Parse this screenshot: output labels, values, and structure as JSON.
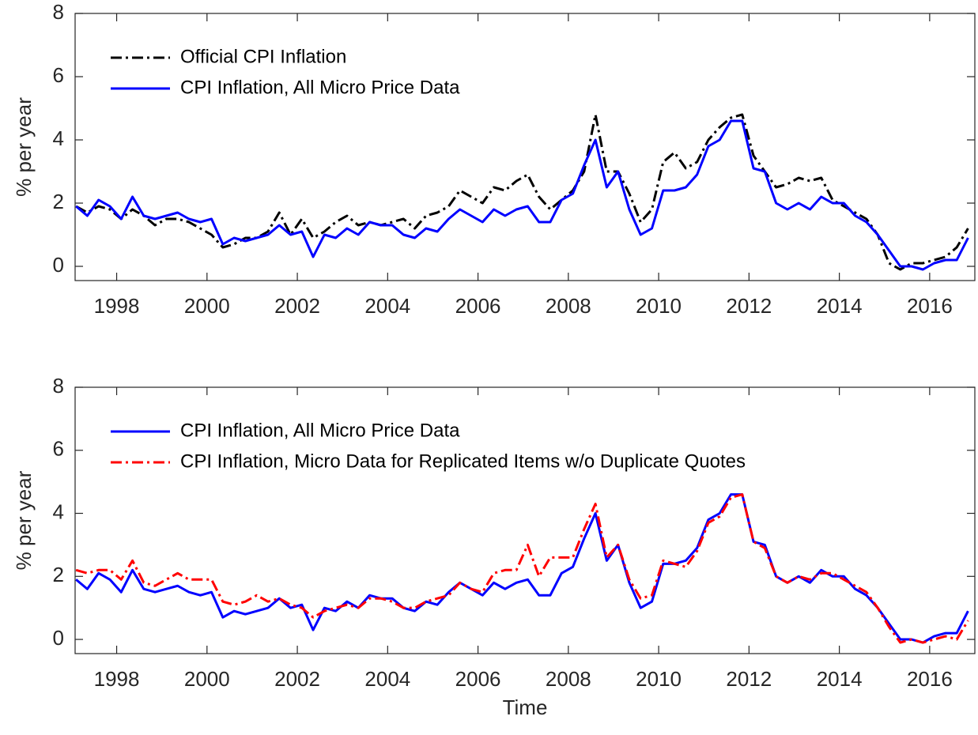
{
  "chart_data": [
    {
      "type": "line",
      "ylabel": "% per year",
      "legend": "upper left",
      "grid": false,
      "xlim": [
        1997.08,
        2017.0
      ],
      "ylim": [
        -0.45,
        8
      ],
      "xticks": [
        1998,
        2000,
        2002,
        2004,
        2006,
        2008,
        2010,
        2012,
        2014,
        2016
      ],
      "yticks": [
        0,
        2,
        4,
        6,
        8
      ],
      "x": [
        1997.1,
        1997.35,
        1997.6,
        1997.85,
        1998.1,
        1998.35,
        1998.6,
        1998.85,
        1999.1,
        1999.35,
        1999.6,
        1999.85,
        2000.1,
        2000.35,
        2000.6,
        2000.85,
        2001.1,
        2001.35,
        2001.6,
        2001.85,
        2002.1,
        2002.35,
        2002.6,
        2002.85,
        2003.1,
        2003.35,
        2003.6,
        2003.85,
        2004.1,
        2004.35,
        2004.6,
        2004.85,
        2005.1,
        2005.35,
        2005.6,
        2005.85,
        2006.1,
        2006.35,
        2006.6,
        2006.85,
        2007.1,
        2007.35,
        2007.6,
        2007.85,
        2008.1,
        2008.35,
        2008.6,
        2008.85,
        2009.1,
        2009.35,
        2009.6,
        2009.85,
        2010.1,
        2010.35,
        2010.6,
        2010.85,
        2011.1,
        2011.35,
        2011.6,
        2011.85,
        2012.1,
        2012.35,
        2012.6,
        2012.85,
        2013.1,
        2013.35,
        2013.6,
        2013.85,
        2014.1,
        2014.35,
        2014.6,
        2014.85,
        2015.1,
        2015.35,
        2015.6,
        2015.85,
        2016.1,
        2016.35,
        2016.6,
        2016.85
      ],
      "series": [
        {
          "name": "Official CPI Inflation",
          "color": "#000000",
          "linestyle": "dashdot",
          "values": [
            1.9,
            1.7,
            1.9,
            1.8,
            1.5,
            1.8,
            1.6,
            1.3,
            1.5,
            1.5,
            1.4,
            1.2,
            1.0,
            0.6,
            0.7,
            0.9,
            0.9,
            1.1,
            1.7,
            1.0,
            1.5,
            0.9,
            1.1,
            1.4,
            1.6,
            1.3,
            1.4,
            1.3,
            1.4,
            1.5,
            1.2,
            1.6,
            1.7,
            1.9,
            2.4,
            2.2,
            2.0,
            2.5,
            2.4,
            2.7,
            2.9,
            2.2,
            1.8,
            2.1,
            2.4,
            3.0,
            4.8,
            3.0,
            3.0,
            2.3,
            1.4,
            1.8,
            3.3,
            3.6,
            3.1,
            3.3,
            4.0,
            4.4,
            4.7,
            4.8,
            3.5,
            3.0,
            2.5,
            2.6,
            2.8,
            2.7,
            2.8,
            2.1,
            1.9,
            1.7,
            1.5,
            1.0,
            0.1,
            -0.1,
            0.1,
            0.1,
            0.2,
            0.3,
            0.6,
            1.2
          ]
        },
        {
          "name": "CPI Inflation, All Micro Price Data",
          "color": "#0000ff",
          "linestyle": "solid",
          "values": [
            1.9,
            1.6,
            2.1,
            1.9,
            1.5,
            2.2,
            1.6,
            1.5,
            1.6,
            1.7,
            1.5,
            1.4,
            1.5,
            0.7,
            0.9,
            0.8,
            0.9,
            1.0,
            1.3,
            1.0,
            1.1,
            0.3,
            1.0,
            0.9,
            1.2,
            1.0,
            1.4,
            1.3,
            1.3,
            1.0,
            0.9,
            1.2,
            1.1,
            1.5,
            1.8,
            1.6,
            1.4,
            1.8,
            1.6,
            1.8,
            1.9,
            1.4,
            1.4,
            2.1,
            2.3,
            3.2,
            4.0,
            2.5,
            3.0,
            1.8,
            1.0,
            1.2,
            2.4,
            2.4,
            2.5,
            2.9,
            3.8,
            4.0,
            4.6,
            4.6,
            3.1,
            3.0,
            2.0,
            1.8,
            2.0,
            1.8,
            2.2,
            2.0,
            2.0,
            1.6,
            1.4,
            1.0,
            0.5,
            0.0,
            0.0,
            -0.1,
            0.1,
            0.2,
            0.2,
            0.9
          ]
        }
      ]
    },
    {
      "type": "line",
      "ylabel": "% per year",
      "xlabel": "Time",
      "legend": "upper left",
      "grid": false,
      "xlim": [
        1997.08,
        2017.0
      ],
      "ylim": [
        -0.45,
        8
      ],
      "xticks": [
        1998,
        2000,
        2002,
        2004,
        2006,
        2008,
        2010,
        2012,
        2014,
        2016
      ],
      "yticks": [
        0,
        2,
        4,
        6,
        8
      ],
      "x": [
        1997.1,
        1997.35,
        1997.6,
        1997.85,
        1998.1,
        1998.35,
        1998.6,
        1998.85,
        1999.1,
        1999.35,
        1999.6,
        1999.85,
        2000.1,
        2000.35,
        2000.6,
        2000.85,
        2001.1,
        2001.35,
        2001.6,
        2001.85,
        2002.1,
        2002.35,
        2002.6,
        2002.85,
        2003.1,
        2003.35,
        2003.6,
        2003.85,
        2004.1,
        2004.35,
        2004.6,
        2004.85,
        2005.1,
        2005.35,
        2005.6,
        2005.85,
        2006.1,
        2006.35,
        2006.6,
        2006.85,
        2007.1,
        2007.35,
        2007.6,
        2007.85,
        2008.1,
        2008.35,
        2008.6,
        2008.85,
        2009.1,
        2009.35,
        2009.6,
        2009.85,
        2010.1,
        2010.35,
        2010.6,
        2010.85,
        2011.1,
        2011.35,
        2011.6,
        2011.85,
        2012.1,
        2012.35,
        2012.6,
        2012.85,
        2013.1,
        2013.35,
        2013.6,
        2013.85,
        2014.1,
        2014.35,
        2014.6,
        2014.85,
        2015.1,
        2015.35,
        2015.6,
        2015.85,
        2016.1,
        2016.35,
        2016.6,
        2016.85
      ],
      "series": [
        {
          "name": "CPI Inflation, All Micro Price Data",
          "color": "#0000ff",
          "linestyle": "solid",
          "values": [
            1.9,
            1.6,
            2.1,
            1.9,
            1.5,
            2.2,
            1.6,
            1.5,
            1.6,
            1.7,
            1.5,
            1.4,
            1.5,
            0.7,
            0.9,
            0.8,
            0.9,
            1.0,
            1.3,
            1.0,
            1.1,
            0.3,
            1.0,
            0.9,
            1.2,
            1.0,
            1.4,
            1.3,
            1.3,
            1.0,
            0.9,
            1.2,
            1.1,
            1.5,
            1.8,
            1.6,
            1.4,
            1.8,
            1.6,
            1.8,
            1.9,
            1.4,
            1.4,
            2.1,
            2.3,
            3.2,
            4.0,
            2.5,
            3.0,
            1.8,
            1.0,
            1.2,
            2.4,
            2.4,
            2.5,
            2.9,
            3.8,
            4.0,
            4.6,
            4.6,
            3.1,
            3.0,
            2.0,
            1.8,
            2.0,
            1.8,
            2.2,
            2.0,
            2.0,
            1.6,
            1.4,
            1.0,
            0.5,
            0.0,
            0.0,
            -0.1,
            0.1,
            0.2,
            0.2,
            0.9
          ]
        },
        {
          "name": "CPI Inflation, Micro Data for Replicated Items w/o Duplicate Quotes",
          "color": "#ff0000",
          "linestyle": "dashdot",
          "values": [
            2.2,
            2.1,
            2.2,
            2.2,
            1.9,
            2.5,
            1.8,
            1.7,
            1.9,
            2.1,
            1.9,
            1.9,
            1.9,
            1.2,
            1.1,
            1.2,
            1.4,
            1.2,
            1.3,
            1.1,
            1.0,
            0.7,
            0.9,
            1.0,
            1.1,
            1.0,
            1.3,
            1.3,
            1.2,
            1.0,
            1.0,
            1.2,
            1.3,
            1.4,
            1.8,
            1.6,
            1.5,
            2.1,
            2.2,
            2.2,
            3.0,
            2.0,
            2.6,
            2.6,
            2.6,
            3.5,
            4.3,
            2.6,
            3.0,
            1.9,
            1.3,
            1.4,
            2.5,
            2.4,
            2.3,
            2.8,
            3.7,
            3.9,
            4.5,
            4.6,
            3.1,
            2.9,
            2.0,
            1.8,
            2.0,
            1.9,
            2.1,
            2.1,
            1.9,
            1.7,
            1.5,
            1.0,
            0.4,
            -0.1,
            0.0,
            -0.1,
            0.0,
            0.1,
            0.0,
            0.6
          ]
        }
      ]
    }
  ]
}
